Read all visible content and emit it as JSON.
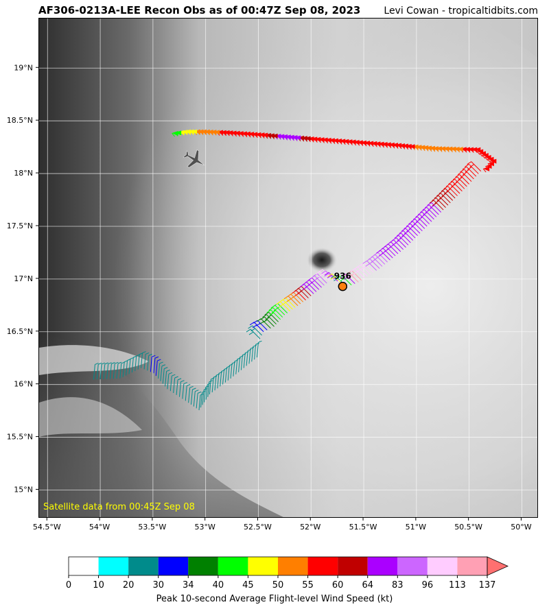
{
  "header": {
    "title": "AF306-0213A-LEE Recon Obs as of 00:47Z Sep 08, 2023",
    "credit": "Levi Cowan - tropicaltidbits.com"
  },
  "map": {
    "lon_range": [
      -54.58,
      -49.84
    ],
    "lat_range": [
      14.73,
      19.47
    ],
    "lat_ticks": [
      {
        "value": 19.0,
        "label": "19°N"
      },
      {
        "value": 18.5,
        "label": "18.5°N"
      },
      {
        "value": 18.0,
        "label": "18°N"
      },
      {
        "value": 17.5,
        "label": "17.5°N"
      },
      {
        "value": 17.0,
        "label": "17°N"
      },
      {
        "value": 16.5,
        "label": "16.5°N"
      },
      {
        "value": 16.0,
        "label": "16°N"
      },
      {
        "value": 15.5,
        "label": "15.5°N"
      },
      {
        "value": 15.0,
        "label": "15°N"
      }
    ],
    "lon_ticks": [
      {
        "value": -54.5,
        "label": "54.5°W"
      },
      {
        "value": -54.0,
        "label": "54°W"
      },
      {
        "value": -53.5,
        "label": "53.5°W"
      },
      {
        "value": -53.0,
        "label": "53°W"
      },
      {
        "value": -52.5,
        "label": "52.5°W"
      },
      {
        "value": -52.0,
        "label": "52°W"
      },
      {
        "value": -51.5,
        "label": "51.5°W"
      },
      {
        "value": -51.0,
        "label": "51°W"
      },
      {
        "value": -50.5,
        "label": "50.5°W"
      },
      {
        "value": -50.0,
        "label": "50°W"
      }
    ],
    "satellite_caption": "Satellite data from 00:45Z Sep 08",
    "center_pressure": {
      "label": "936",
      "lon": -51.7,
      "lat": 16.93,
      "color": "#ff7f0e"
    },
    "flight_track": [
      {
        "lon": -54.05,
        "lat": 16.19,
        "kt": 25
      },
      {
        "lon": -53.8,
        "lat": 16.2,
        "kt": 25
      },
      {
        "lon": -53.6,
        "lat": 16.3,
        "kt": 25
      },
      {
        "lon": -53.48,
        "lat": 16.25,
        "kt": 32
      },
      {
        "lon": -53.35,
        "lat": 16.1,
        "kt": 25
      },
      {
        "lon": -53.15,
        "lat": 15.97,
        "kt": 25
      },
      {
        "lon": -53.05,
        "lat": 15.9,
        "kt": 25
      },
      {
        "lon": -52.95,
        "lat": 16.05,
        "kt": 25
      },
      {
        "lon": -52.75,
        "lat": 16.2,
        "kt": 25
      },
      {
        "lon": -52.5,
        "lat": 16.4,
        "kt": 25
      },
      {
        "lon": -52.45,
        "lat": 16.5,
        "kt": 32
      },
      {
        "lon": -52.35,
        "lat": 16.55,
        "kt": 37
      },
      {
        "lon": -52.25,
        "lat": 16.66,
        "kt": 42
      },
      {
        "lon": -52.15,
        "lat": 16.73,
        "kt": 48
      },
      {
        "lon": -52.05,
        "lat": 16.8,
        "kt": 57
      },
      {
        "lon": -51.95,
        "lat": 16.88,
        "kt": 70
      },
      {
        "lon": -51.8,
        "lat": 17.0,
        "kt": 105
      },
      {
        "lon": -51.65,
        "lat": 16.93,
        "kt": 5
      },
      {
        "lon": -51.55,
        "lat": 16.97,
        "kt": 120
      },
      {
        "lon": -51.35,
        "lat": 17.1,
        "kt": 90
      },
      {
        "lon": -51.1,
        "lat": 17.3,
        "kt": 70
      },
      {
        "lon": -50.9,
        "lat": 17.5,
        "kt": 70
      },
      {
        "lon": -50.7,
        "lat": 17.7,
        "kt": 62
      },
      {
        "lon": -50.5,
        "lat": 17.9,
        "kt": 57
      },
      {
        "lon": -50.3,
        "lat": 18.12,
        "kt": 57
      },
      {
        "lon": -50.45,
        "lat": 18.23,
        "kt": 57
      },
      {
        "lon": -50.85,
        "lat": 18.24,
        "kt": 52
      },
      {
        "lon": -51.2,
        "lat": 18.27,
        "kt": 57
      },
      {
        "lon": -51.6,
        "lat": 18.3,
        "kt": 57
      },
      {
        "lon": -52.0,
        "lat": 18.33,
        "kt": 57
      },
      {
        "lon": -52.25,
        "lat": 18.35,
        "kt": 70
      },
      {
        "lon": -52.5,
        "lat": 18.37,
        "kt": 57
      },
      {
        "lon": -52.8,
        "lat": 18.39,
        "kt": 57
      },
      {
        "lon": -53.05,
        "lat": 18.4,
        "kt": 52
      },
      {
        "lon": -53.2,
        "lat": 18.4,
        "kt": 47
      },
      {
        "lon": -53.35,
        "lat": 18.38,
        "kt": 42
      }
    ],
    "aircraft": {
      "lon": -53.1,
      "lat": 18.13,
      "icon": "airplane-icon"
    }
  },
  "colorbar": {
    "bins": [
      {
        "from": "0",
        "color": "#ffffff"
      },
      {
        "from": "10",
        "color": "#00ffff"
      },
      {
        "from": "20",
        "color": "#008b8b"
      },
      {
        "from": "30",
        "color": "#0000ff"
      },
      {
        "from": "34",
        "color": "#008000"
      },
      {
        "from": "40",
        "color": "#00ff00"
      },
      {
        "from": "45",
        "color": "#ffff00"
      },
      {
        "from": "50",
        "color": "#ff7f00"
      },
      {
        "from": "55",
        "color": "#ff0000"
      },
      {
        "from": "60",
        "color": "#c00000"
      },
      {
        "from": "64",
        "color": "#aa00ff"
      },
      {
        "from": "83",
        "color": "#cc66ff"
      },
      {
        "from": "96",
        "color": "#ffccff"
      },
      {
        "from": "113",
        "color": "#ffa0b4"
      }
    ],
    "last_label": "137",
    "extend_color": "#ff7070",
    "label": "Peak 10-second Average Flight-level Wind Speed (kt)"
  }
}
